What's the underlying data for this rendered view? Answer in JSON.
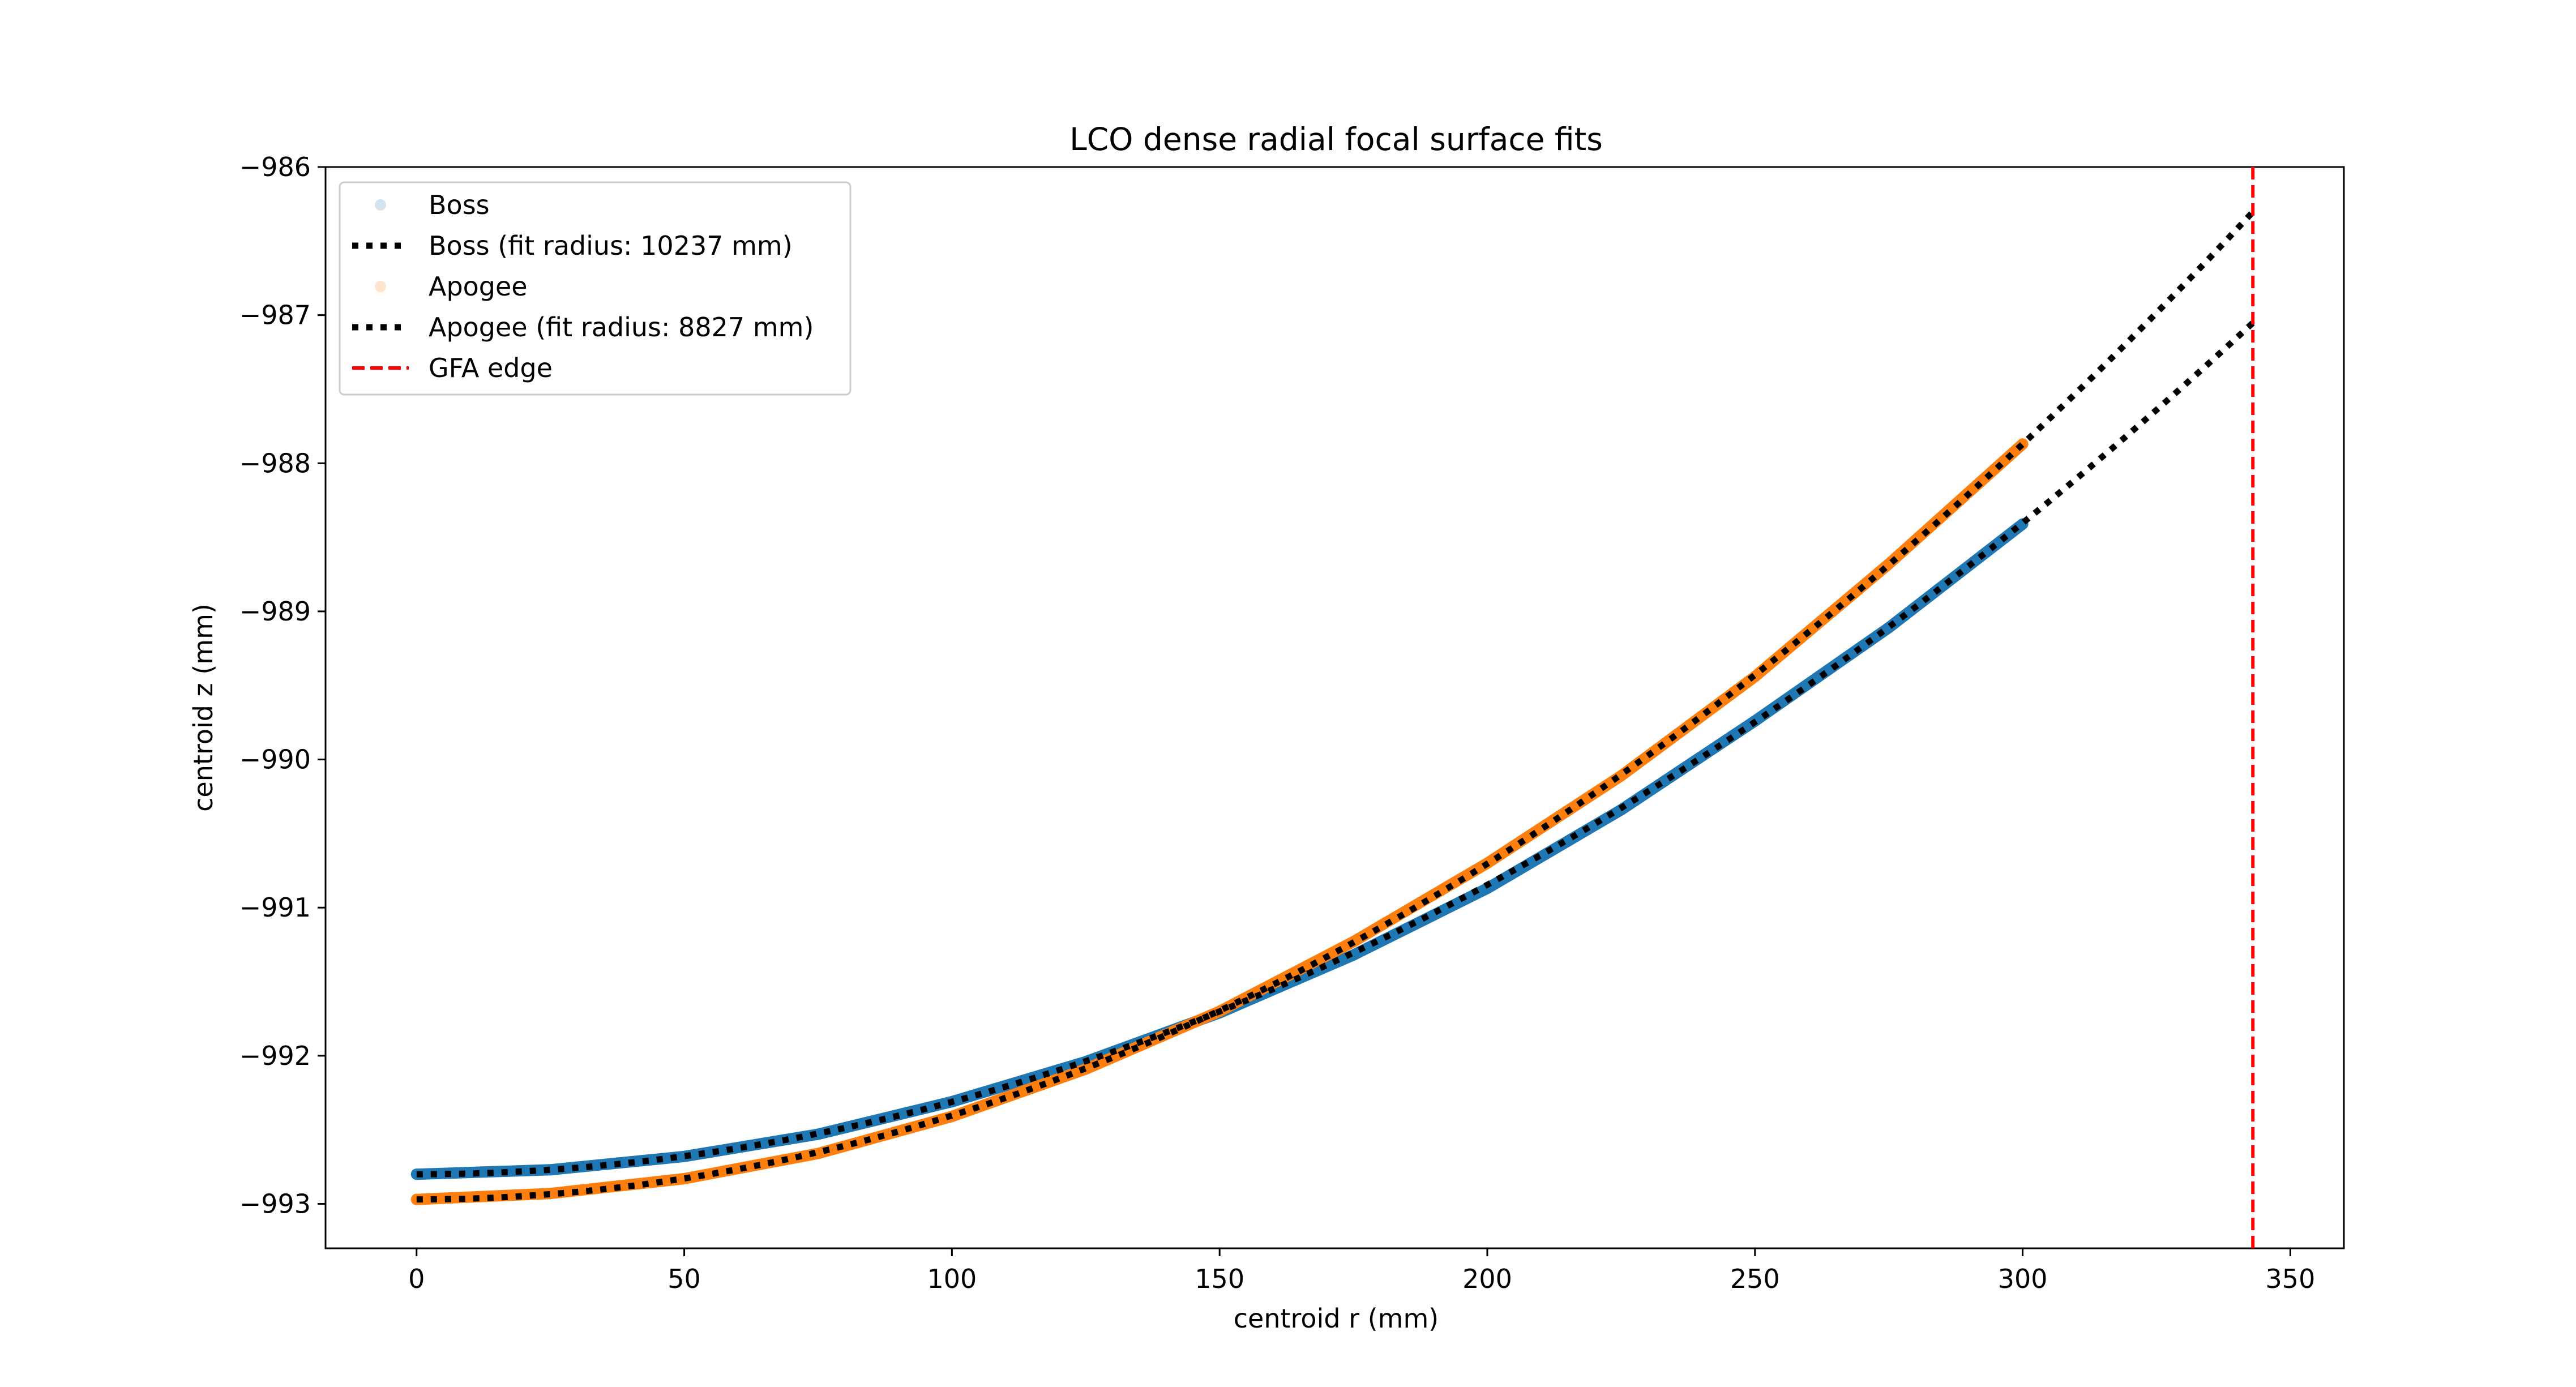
{
  "chart_data": {
    "type": "line",
    "title": "LCO dense radial focal surface fits",
    "xlabel": "centroid r (mm)",
    "ylabel": "centroid z (mm)",
    "xlim": [
      -17,
      360
    ],
    "ylim": [
      -993.3,
      -986.0
    ],
    "x_ticks": [
      0,
      50,
      100,
      150,
      200,
      250,
      300,
      350
    ],
    "y_ticks": [
      -993,
      -992,
      -991,
      -990,
      -989,
      -988,
      -987,
      -986
    ],
    "x_tick_labels": [
      "0",
      "50",
      "100",
      "150",
      "200",
      "250",
      "300",
      "350"
    ],
    "y_tick_labels": [
      "−993",
      "−992",
      "−991",
      "−990",
      "−989",
      "−988",
      "−987",
      "−986"
    ],
    "grid": false,
    "legend_position": "upper-left",
    "series": [
      {
        "name": "Boss",
        "kind": "points",
        "color": "#1f77b4",
        "x_range": [
          0,
          300
        ],
        "x": [
          0,
          25,
          50,
          75,
          100,
          125,
          150,
          175,
          200,
          225,
          250,
          275,
          300
        ],
        "values": [
          -992.8,
          -992.77,
          -992.68,
          -992.53,
          -992.31,
          -992.04,
          -991.71,
          -991.32,
          -990.87,
          -990.34,
          -989.74,
          -989.11,
          -988.41
        ]
      },
      {
        "name": "Boss (fit radius: 10237 mm)",
        "kind": "fit",
        "color": "#000000",
        "fit_radius": 10237,
        "vertex_z": -992.8,
        "x_range": [
          0,
          343
        ]
      },
      {
        "name": "Apogee",
        "kind": "points",
        "color": "#ff7f0e",
        "x_range": [
          0,
          300
        ],
        "x": [
          0,
          25,
          50,
          75,
          100,
          125,
          150,
          175,
          200,
          225,
          250,
          275,
          300
        ],
        "values": [
          -992.97,
          -992.93,
          -992.83,
          -992.66,
          -992.41,
          -992.09,
          -991.7,
          -991.23,
          -990.7,
          -990.11,
          -989.44,
          -988.68,
          -987.87
        ]
      },
      {
        "name": "Apogee (fit radius: 8827 mm)",
        "kind": "fit",
        "color": "#000000",
        "fit_radius": 8827,
        "vertex_z": -992.97,
        "x_range": [
          0,
          343
        ]
      },
      {
        "name": "GFA edge",
        "kind": "vline",
        "color": "#ff0000",
        "x": 343
      }
    ]
  }
}
